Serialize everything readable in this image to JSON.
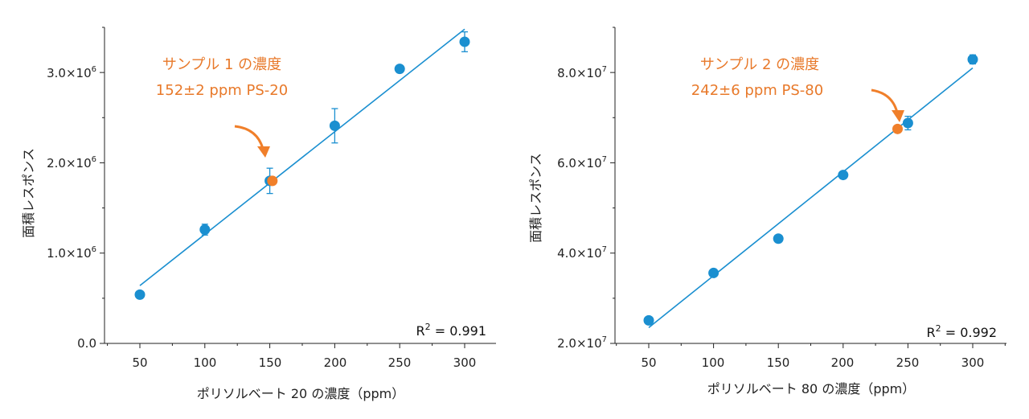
{
  "colors": {
    "point": "#1a8fd0",
    "line": "#1a8fd0",
    "sample": "#f07f2a",
    "annotation": "#e8792a",
    "axis": "#222222"
  },
  "chart_data": [
    {
      "type": "scatter",
      "title": "",
      "xlabel": "ポリソルベート 20 の濃度（ppm）",
      "ylabel": "面積レスポンス",
      "xlim": [
        22,
        323
      ],
      "ylim": [
        0,
        3500000
      ],
      "x_ticks": [
        50,
        100,
        150,
        200,
        250,
        300
      ],
      "x_tick_labels": [
        "50",
        "100",
        "150",
        "200",
        "250",
        "300"
      ],
      "y_ticks": [
        0,
        1000000,
        2000000,
        3000000
      ],
      "y_tick_labels": [
        {
          "base": "0.0",
          "exp": ""
        },
        {
          "base": "1.0×10",
          "exp": "6"
        },
        {
          "base": "2.0×10",
          "exp": "6"
        },
        {
          "base": "3.0×10",
          "exp": "6"
        }
      ],
      "series": [
        {
          "points": [
            {
              "x": 50,
              "y": 540000,
              "err": 0
            },
            {
              "x": 100,
              "y": 1260000,
              "err": 60000
            },
            {
              "x": 150,
              "y": 1800000,
              "err": 140000
            },
            {
              "x": 200,
              "y": 2410000,
              "err": 190000
            },
            {
              "x": 250,
              "y": 3040000,
              "err": 0
            },
            {
              "x": 300,
              "y": 3340000,
              "err": 110000
            }
          ]
        }
      ],
      "fit": {
        "x": [
          50,
          300
        ],
        "y": [
          640000,
          3480000
        ]
      },
      "sample": {
        "x": 152,
        "y": 1800000
      },
      "annotation": {
        "line1": "サンプル 1 の濃度",
        "line2": "152±2 ppm PS-20"
      },
      "r2": {
        "label": "R",
        "sup": "2",
        "value": " = 0.991"
      }
    },
    {
      "type": "scatter",
      "title": "",
      "xlabel": "ポリソルベート 80 の濃度（ppm）",
      "ylabel": "面積レスポンス",
      "xlim": [
        22,
        325
      ],
      "ylim": [
        20000000,
        90000000
      ],
      "x_ticks": [
        50,
        100,
        150,
        200,
        250,
        300
      ],
      "x_tick_labels": [
        "50",
        "100",
        "150",
        "200",
        "250",
        "300"
      ],
      "y_ticks": [
        20000000,
        40000000,
        60000000,
        80000000
      ],
      "y_tick_labels": [
        {
          "base": "2.0×10",
          "exp": "7"
        },
        {
          "base": "4.0×10",
          "exp": "7"
        },
        {
          "base": "6.0×10",
          "exp": "7"
        },
        {
          "base": "8.0×10",
          "exp": "7"
        }
      ],
      "series": [
        {
          "points": [
            {
              "x": 50,
              "y": 25100000,
              "err": 0
            },
            {
              "x": 100,
              "y": 35600000,
              "err": 0
            },
            {
              "x": 150,
              "y": 43200000,
              "err": 0
            },
            {
              "x": 200,
              "y": 57300000,
              "err": 0
            },
            {
              "x": 250,
              "y": 68800000,
              "err": 1500000
            },
            {
              "x": 300,
              "y": 82900000,
              "err": 1000000
            }
          ]
        }
      ],
      "fit": {
        "x": [
          50,
          300
        ],
        "y": [
          23500000,
          81000000
        ]
      },
      "sample": {
        "x": 242,
        "y": 67500000
      },
      "annotation": {
        "line1": "サンプル 2 の濃度",
        "line2": "242±6 ppm PS-80"
      },
      "r2": {
        "label": "R",
        "sup": "2",
        "value": " = 0.992"
      }
    }
  ]
}
